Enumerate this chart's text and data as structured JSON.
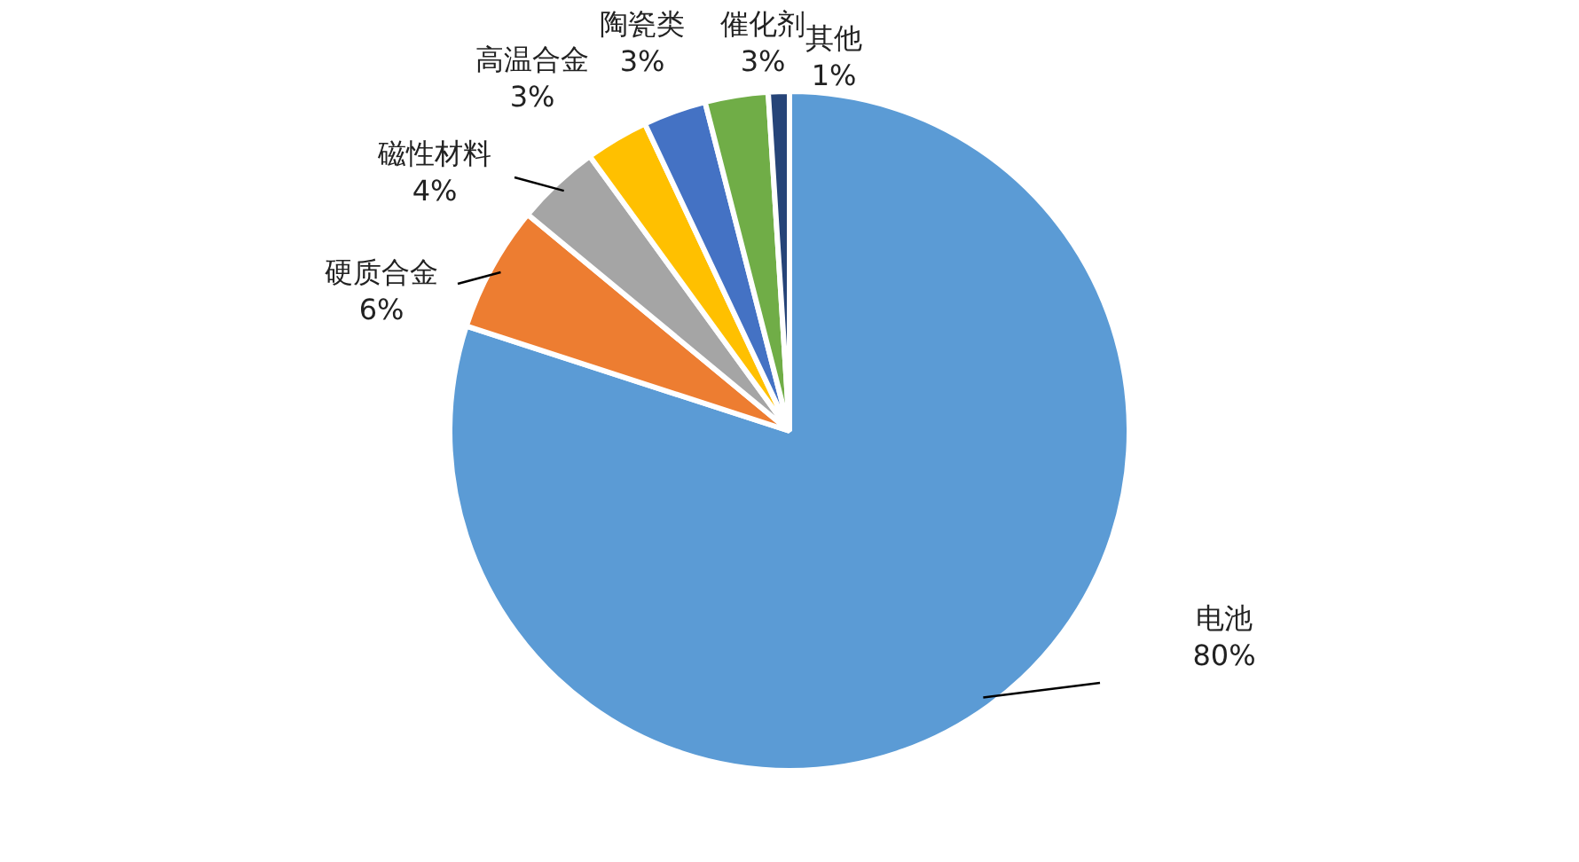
{
  "chart_data": {
    "type": "pie",
    "categories": [
      "电池",
      "硬质合金",
      "磁性材料",
      "高温合金",
      "陶瓷类",
      "催化剂",
      "其他"
    ],
    "values": [
      80,
      6,
      4,
      3,
      3,
      3,
      1
    ],
    "value_labels": [
      "80%",
      "6%",
      "4%",
      "3%",
      "3%",
      "3%",
      "1%"
    ],
    "colors": [
      "#5b9bd5",
      "#ed7d31",
      "#a5a5a5",
      "#ffc000",
      "#4472c4",
      "#70ad47",
      "#264478"
    ],
    "legend": false
  }
}
